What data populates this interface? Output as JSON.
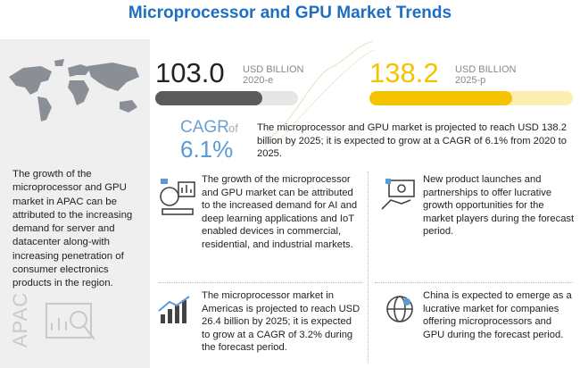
{
  "title": "Microprocessor and GPU Market Trends",
  "side_panel": {
    "text": "The growth of the microprocessor and GPU market in APAC can be attributed to the increasing demand for server and datacenter along-with increasing penetration of consumer electronics products in the region.",
    "region": "APAC"
  },
  "stats": [
    {
      "value": "103.0",
      "unit": "USD BILLION",
      "year": "2020-e"
    },
    {
      "value": "138.2",
      "unit": "USD BILLION",
      "year": "2025-p"
    }
  ],
  "cagr": {
    "label": "CAGR",
    "suffix": "of",
    "value": "6.1%"
  },
  "summary": "The microprocessor and GPU market is projected to reach USD 138.2 billion by 2025; it is expected to grow at a CAGR of 6.1% from 2020 to 2025.",
  "highlights": [
    "The growth of the microprocessor and GPU market can be attributed to the increased demand for AI and deep learning applications and IoT enabled devices in commercial, residential, and industrial markets.",
    "New product launches and partnerships to offer lucrative growth opportunities for the market players during the forecast period.",
    "The microprocessor market in Americas is projected to reach USD 26.4 billion by 2025; it is expected to grow at a CAGR of 3.2% during the forecast period.",
    "China is expected to emerge as a lucrative market for companies offering microprocessors and GPU during the forecast period."
  ]
}
